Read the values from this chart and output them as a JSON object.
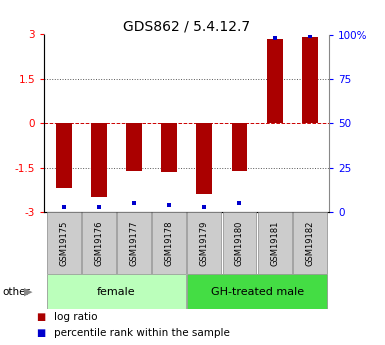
{
  "title": "GDS862 / 5.4.12.7",
  "samples": [
    "GSM19175",
    "GSM19176",
    "GSM19177",
    "GSM19178",
    "GSM19179",
    "GSM19180",
    "GSM19181",
    "GSM19182"
  ],
  "log_ratio": [
    -2.2,
    -2.5,
    -1.6,
    -1.65,
    -2.4,
    -1.6,
    2.85,
    2.9
  ],
  "percentile_rank": [
    3,
    3,
    5,
    4,
    3,
    5,
    98,
    99
  ],
  "bar_color": "#aa0000",
  "dot_color": "#0000cc",
  "ylim": [
    -3,
    3
  ],
  "yticks_left": [
    -3,
    -1.5,
    0,
    1.5,
    3
  ],
  "ytick_labels_left": [
    "-3",
    "-1.5",
    "0",
    "1.5",
    "3"
  ],
  "yticks_right": [
    0,
    25,
    50,
    75,
    100
  ],
  "ytick_labels_right": [
    "0",
    "25",
    "50",
    "75",
    "100%"
  ],
  "groups": [
    {
      "label": "female",
      "start": 0,
      "end": 3,
      "color": "#bbffbb"
    },
    {
      "label": "GH-treated male",
      "start": 4,
      "end": 7,
      "color": "#44dd44"
    }
  ],
  "legend_label_red": "log ratio",
  "legend_label_blue": "percentile rank within the sample",
  "other_label": "other",
  "background_color": "#ffffff",
  "plot_bg_color": "#ffffff",
  "zero_line_color": "#cc0000",
  "bar_width": 0.45,
  "title_fontsize": 10,
  "tick_fontsize": 7.5,
  "sample_fontsize": 6,
  "group_fontsize": 8,
  "legend_fontsize": 7.5
}
